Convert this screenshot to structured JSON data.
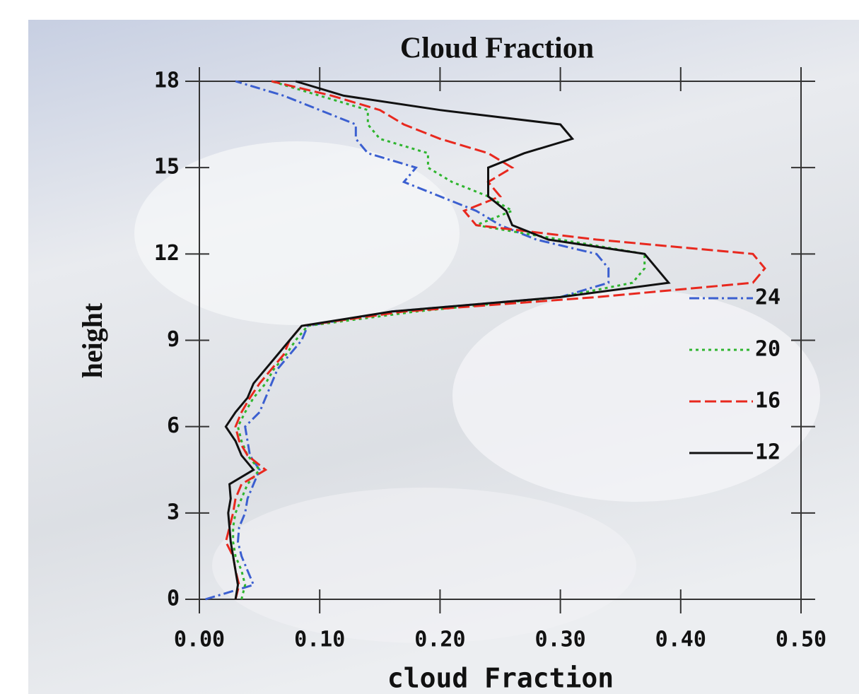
{
  "chart_data": {
    "type": "line",
    "title": "Cloud Fraction",
    "x_label": "cloud Fraction",
    "y_label": "height",
    "xlim": [
      0,
      0.5
    ],
    "ylim": [
      0,
      18
    ],
    "xticks": [
      {
        "value": 0,
        "label": "0.00"
      },
      {
        "value": 0.1,
        "label": "0.10"
      },
      {
        "value": 0.2,
        "label": "0.20"
      },
      {
        "value": 0.3,
        "label": "0.30"
      },
      {
        "value": 0.4,
        "label": "0.40"
      },
      {
        "value": 0.5,
        "label": "0.50"
      }
    ],
    "yticks": [
      0,
      3,
      6,
      9,
      12,
      15,
      18
    ],
    "legend": "right",
    "y": [
      0,
      0.5,
      1,
      1.5,
      2,
      2.5,
      3,
      3.5,
      4,
      4.5,
      5,
      5.5,
      6,
      6.5,
      7,
      7.5,
      8,
      8.5,
      9,
      9.5,
      10,
      10.5,
      11,
      11.5,
      12,
      12.5,
      13,
      13.5,
      14,
      14.5,
      15,
      15.5,
      16,
      16.5,
      17,
      17.5,
      18
    ],
    "series": [
      {
        "name": "24",
        "color": "#3b5fd0",
        "dash": "dashdot",
        "values": [
          0.005,
          0.045,
          0.04,
          0.035,
          0.032,
          0.033,
          0.038,
          0.04,
          0.045,
          0.05,
          0.042,
          0.04,
          0.038,
          0.05,
          0.055,
          0.06,
          0.065,
          0.075,
          0.085,
          0.09,
          0.16,
          0.3,
          0.34,
          0.34,
          0.33,
          0.28,
          0.25,
          0.23,
          0.2,
          0.17,
          0.18,
          0.14,
          0.13,
          0.13,
          0.1,
          0.07,
          0.03
        ]
      },
      {
        "name": "20",
        "color": "#2fb52f",
        "dash": "dotted",
        "values": [
          0.035,
          0.038,
          0.035,
          0.03,
          0.028,
          0.028,
          0.03,
          0.035,
          0.04,
          0.05,
          0.04,
          0.035,
          0.032,
          0.038,
          0.045,
          0.055,
          0.062,
          0.072,
          0.08,
          0.09,
          0.18,
          0.3,
          0.36,
          0.37,
          0.37,
          0.3,
          0.23,
          0.26,
          0.24,
          0.21,
          0.19,
          0.19,
          0.15,
          0.14,
          0.14,
          0.1,
          0.06
        ]
      },
      {
        "name": "16",
        "color": "#e8281e",
        "dash": "dashed",
        "values": [
          0.03,
          0.033,
          0.03,
          0.028,
          0.022,
          0.025,
          0.028,
          0.03,
          0.035,
          0.055,
          0.04,
          0.033,
          0.03,
          0.035,
          0.042,
          0.05,
          0.06,
          0.07,
          0.075,
          0.085,
          0.17,
          0.33,
          0.46,
          0.47,
          0.46,
          0.33,
          0.23,
          0.22,
          0.25,
          0.24,
          0.26,
          0.24,
          0.2,
          0.17,
          0.15,
          0.11,
          0.06
        ]
      },
      {
        "name": "12",
        "color": "#111111",
        "dash": "solid",
        "values": [
          0.03,
          0.032,
          0.03,
          0.028,
          0.026,
          0.025,
          0.024,
          0.026,
          0.025,
          0.045,
          0.035,
          0.03,
          0.022,
          0.03,
          0.04,
          0.045,
          0.055,
          0.065,
          0.075,
          0.085,
          0.16,
          0.3,
          0.39,
          0.38,
          0.37,
          0.29,
          0.26,
          0.255,
          0.24,
          0.24,
          0.24,
          0.27,
          0.31,
          0.3,
          0.2,
          0.12,
          0.08
        ]
      }
    ]
  }
}
